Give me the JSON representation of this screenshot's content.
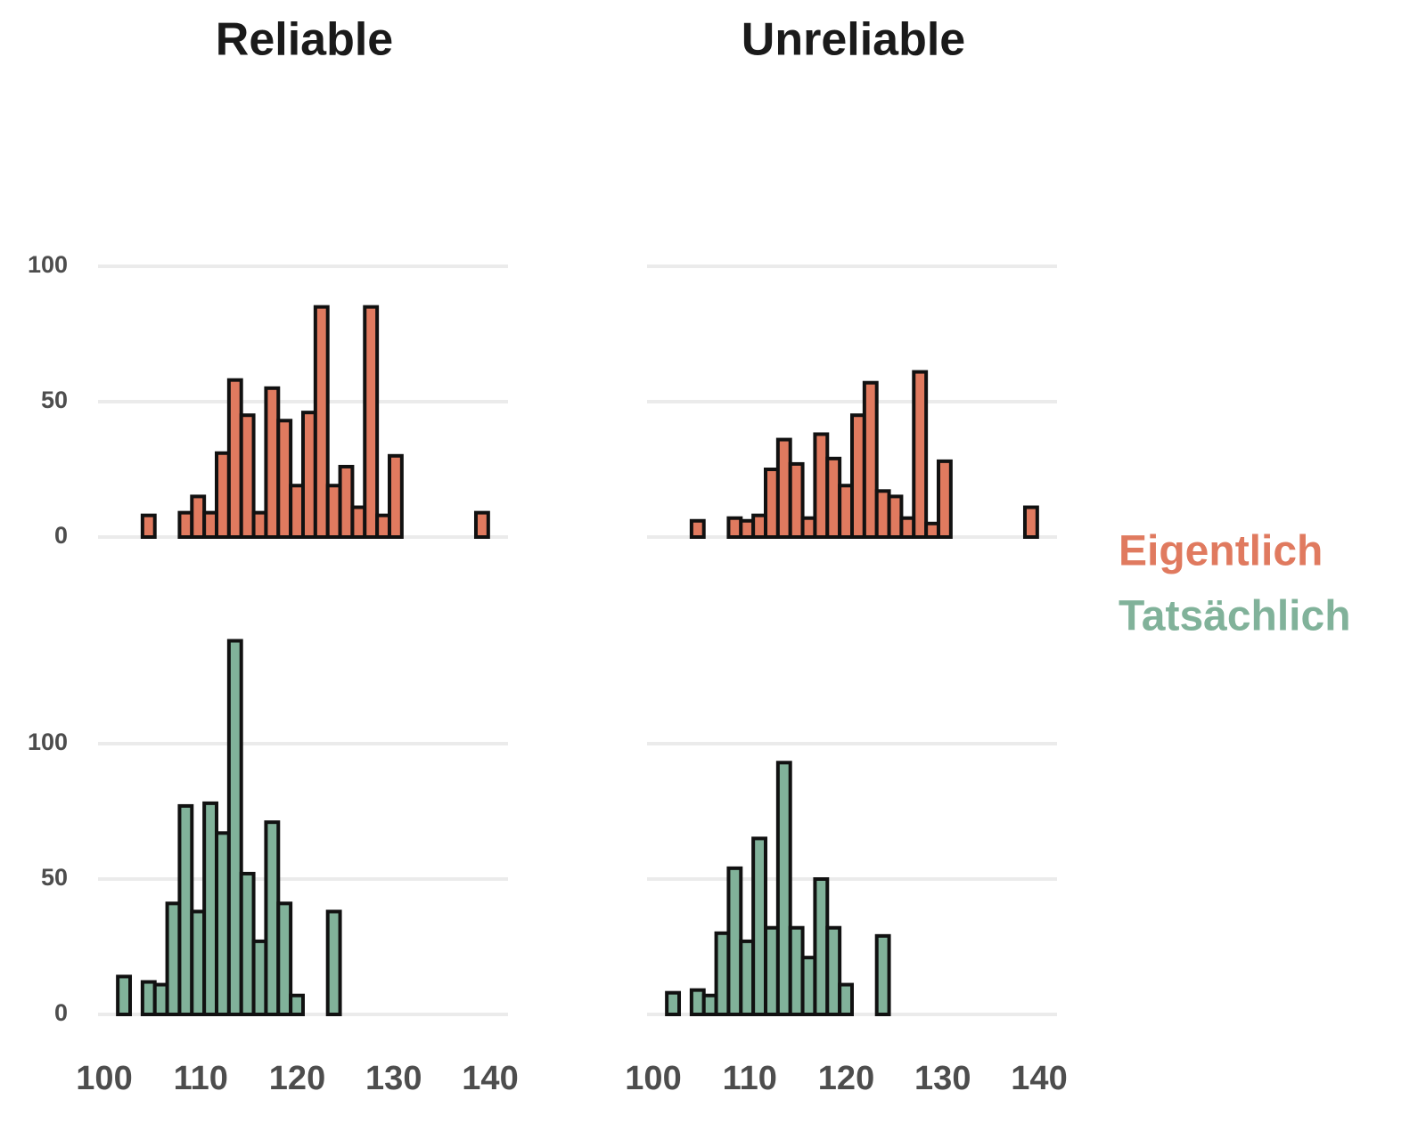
{
  "chart_data": {
    "type": "histogram",
    "columns": [
      "Reliable",
      "Unreliable"
    ],
    "bins": [
      101.4,
      102.68,
      103.96,
      105.24,
      106.52,
      107.8,
      109.08,
      110.36,
      111.64,
      112.92,
      114.2,
      115.48,
      116.76,
      118.04,
      119.32,
      120.6,
      121.88,
      123.16,
      124.44,
      125.72,
      127,
      128.28,
      129.56,
      130.84,
      132.12,
      133.4,
      134.68,
      135.96,
      137.24,
      138.52,
      139.8
    ],
    "xlim": [
      100,
      140
    ],
    "xticks": [
      100,
      110,
      120,
      130,
      140
    ],
    "rows": [
      {
        "ylim": [
          0,
          155
        ],
        "yticks": [
          0,
          50,
          100
        ]
      },
      {
        "ylim": [
          0,
          145
        ],
        "yticks": [
          0,
          50,
          100
        ]
      }
    ],
    "grid": true,
    "series": [
      {
        "name": "Eigentlich",
        "color": "#e07a5f",
        "values": [
          [
            0,
            0,
            8,
            0,
            0,
            9,
            15,
            9,
            31,
            58,
            45,
            9,
            55,
            43,
            19,
            46,
            85,
            19,
            26,
            11,
            85,
            8,
            30,
            0,
            0,
            0,
            0,
            0,
            0,
            9
          ],
          [
            0,
            0,
            6,
            0,
            0,
            7,
            6,
            8,
            25,
            36,
            27,
            7,
            38,
            29,
            19,
            45,
            57,
            17,
            15,
            7,
            61,
            5,
            28,
            0,
            0,
            0,
            0,
            0,
            0,
            11
          ]
        ]
      },
      {
        "name": "Tatsächlich",
        "color": "#81b29a",
        "values": [
          [
            14,
            0,
            12,
            11,
            41,
            77,
            38,
            78,
            67,
            138,
            52,
            27,
            71,
            41,
            7,
            0,
            0,
            38,
            0,
            0,
            0,
            0,
            0,
            0,
            0,
            0,
            0,
            0,
            0,
            0
          ],
          [
            8,
            0,
            9,
            7,
            30,
            54,
            27,
            65,
            32,
            93,
            32,
            21,
            50,
            32,
            11,
            0,
            0,
            29,
            0,
            0,
            0,
            0,
            0,
            0,
            0,
            0,
            0,
            0,
            0,
            0
          ]
        ]
      }
    ]
  }
}
